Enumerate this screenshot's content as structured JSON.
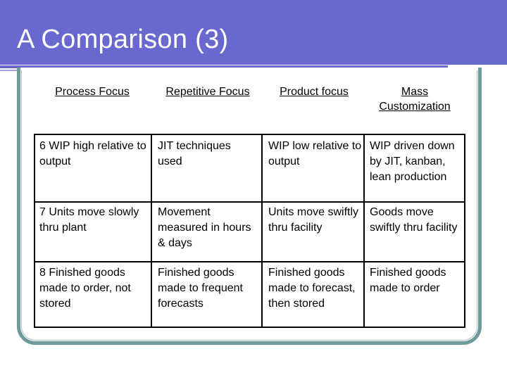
{
  "slide": {
    "title": "A Comparison (3)"
  },
  "table": {
    "headers": [
      "Process Focus",
      "Repetitive Focus",
      "Product focus",
      "Mass Customization"
    ],
    "rows": [
      [
        "6  WIP high relative to output",
        "JIT techniques used",
        "WIP low relative to output",
        "WIP driven down by JIT, kanban, lean production"
      ],
      [
        "7  Units move slowly thru plant",
        "Movement measured in hours & days",
        "Units move swiftly thru facility",
        "Goods move swiftly thru facility"
      ],
      [
        "8  Finished goods made to order, not stored",
        "Finished goods made to frequent forecasts",
        "Finished goods made to forecast, then stored",
        "Finished goods made to order"
      ]
    ]
  }
}
